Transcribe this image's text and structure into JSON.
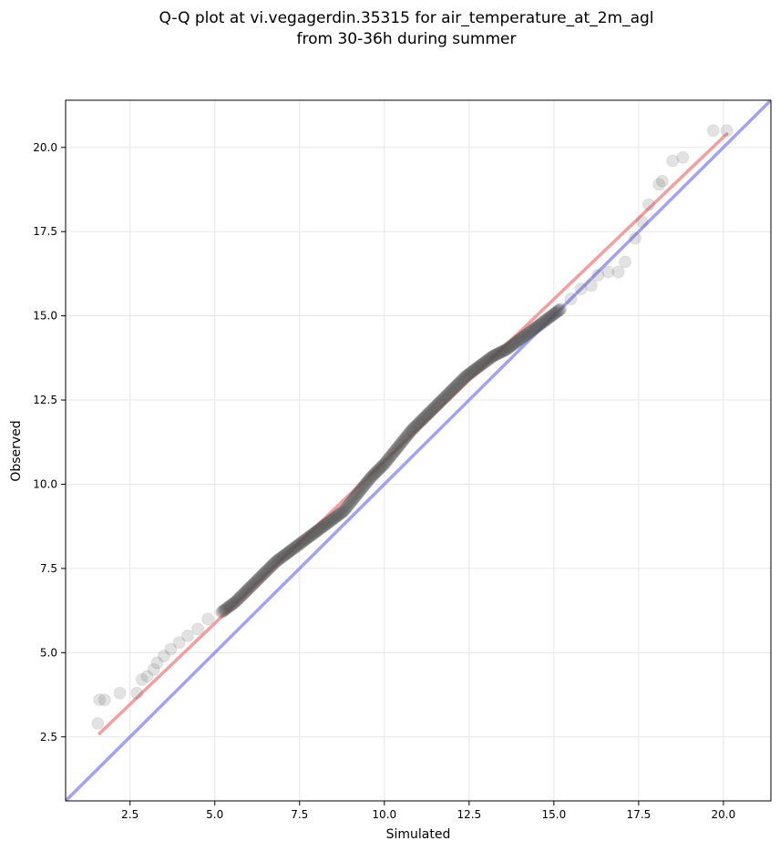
{
  "chart_data": {
    "type": "scatter",
    "title_lines": [
      "Q-Q plot at vi.vegagerdin.35315 for air_temperature_at_2m_agl",
      "from 30-36h during summer"
    ],
    "xlabel": "Simulated",
    "ylabel": "Observed",
    "xlim": [
      0.6,
      21.4
    ],
    "ylim": [
      0.6,
      21.4
    ],
    "x_ticks": [
      2.5,
      5.0,
      7.5,
      10.0,
      12.5,
      15.0,
      17.5,
      20.0
    ],
    "y_ticks": [
      2.5,
      5.0,
      7.5,
      10.0,
      12.5,
      15.0,
      17.5,
      20.0
    ],
    "x_tick_labels": [
      "2.5",
      "5.0",
      "7.5",
      "10.0",
      "12.5",
      "15.0",
      "17.5",
      "20.0"
    ],
    "y_tick_labels": [
      "2.5",
      "5.0",
      "7.5",
      "10.0",
      "12.5",
      "15.0",
      "17.5",
      "20.0"
    ],
    "grid": true,
    "colors": {
      "points": "#555555",
      "fit_line": "#f08080",
      "identity_line": "#8c8cf0",
      "grid": "#e6e6e6"
    },
    "identity_line": {
      "x": [
        0.6,
        21.4
      ],
      "y": [
        0.6,
        21.4
      ]
    },
    "fit_line": {
      "x": [
        1.6,
        20.1
      ],
      "y": [
        2.6,
        20.4
      ]
    },
    "quantiles": {
      "x": [
        1.55,
        1.6,
        1.75,
        2.2,
        2.7,
        2.85,
        3.0,
        3.2,
        3.3,
        3.5,
        3.7,
        3.95,
        4.2,
        4.5,
        4.8,
        5.2,
        5.6,
        6.0,
        6.4,
        6.8,
        7.2,
        7.6,
        8.0,
        8.4,
        8.8,
        9.2,
        9.6,
        10.0,
        10.4,
        10.8,
        11.2,
        11.6,
        12.0,
        12.4,
        12.8,
        13.2,
        13.6,
        14.0,
        14.4,
        14.8,
        15.2,
        15.5,
        15.8,
        16.1,
        16.3,
        16.6,
        16.9,
        17.1,
        17.4,
        17.6,
        17.8,
        18.1,
        18.2,
        18.5,
        18.8,
        19.7,
        20.1
      ],
      "y": [
        2.9,
        3.6,
        3.6,
        3.8,
        3.8,
        4.2,
        4.3,
        4.5,
        4.7,
        4.9,
        5.1,
        5.3,
        5.5,
        5.7,
        6.0,
        6.2,
        6.5,
        6.9,
        7.3,
        7.7,
        8.0,
        8.3,
        8.6,
        8.9,
        9.2,
        9.7,
        10.2,
        10.6,
        11.1,
        11.6,
        12.0,
        12.4,
        12.8,
        13.2,
        13.5,
        13.8,
        14.0,
        14.3,
        14.6,
        14.9,
        15.2,
        15.5,
        15.8,
        15.9,
        16.2,
        16.3,
        16.3,
        16.6,
        17.3,
        17.8,
        18.3,
        18.9,
        19.0,
        19.6,
        19.7,
        20.5,
        20.5
      ]
    }
  }
}
